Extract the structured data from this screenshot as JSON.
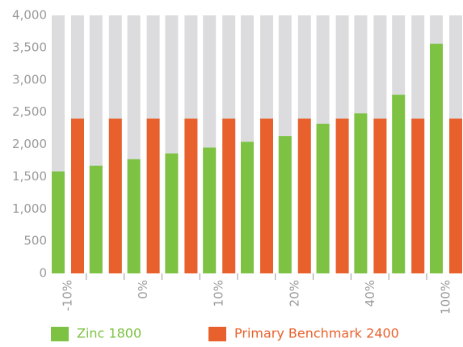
{
  "chart_data": {
    "type": "bar",
    "categories": [
      "-10%",
      null,
      "0%",
      null,
      "10%",
      null,
      "20%",
      null,
      "40%",
      null,
      "100%"
    ],
    "series": [
      {
        "name": "Zinc 1800",
        "color": "#7dc242",
        "values": [
          1580,
          1670,
          1770,
          1860,
          1950,
          2040,
          2130,
          2320,
          2480,
          2770,
          3560
        ]
      },
      {
        "name": "Primary Benchmark 2400",
        "color": "#e8612c",
        "values": [
          2400,
          2400,
          2400,
          2400,
          2400,
          2400,
          2400,
          2400,
          2400,
          2400,
          2400
        ]
      }
    ],
    "ylim": [
      0,
      4000
    ],
    "yticks": [
      0,
      500,
      {
        "value": 1000,
        "label": "1,000"
      },
      {
        "value": 1500,
        "label": "1,500"
      },
      {
        "value": 2000,
        "label": "2,000"
      },
      {
        "value": 2500,
        "label": "2,500"
      },
      {
        "value": 3000,
        "label": "3,000"
      },
      {
        "value": 3500,
        "label": "3,500"
      },
      {
        "value": 4000,
        "label": "4,000"
      }
    ],
    "legend": "bottom"
  }
}
